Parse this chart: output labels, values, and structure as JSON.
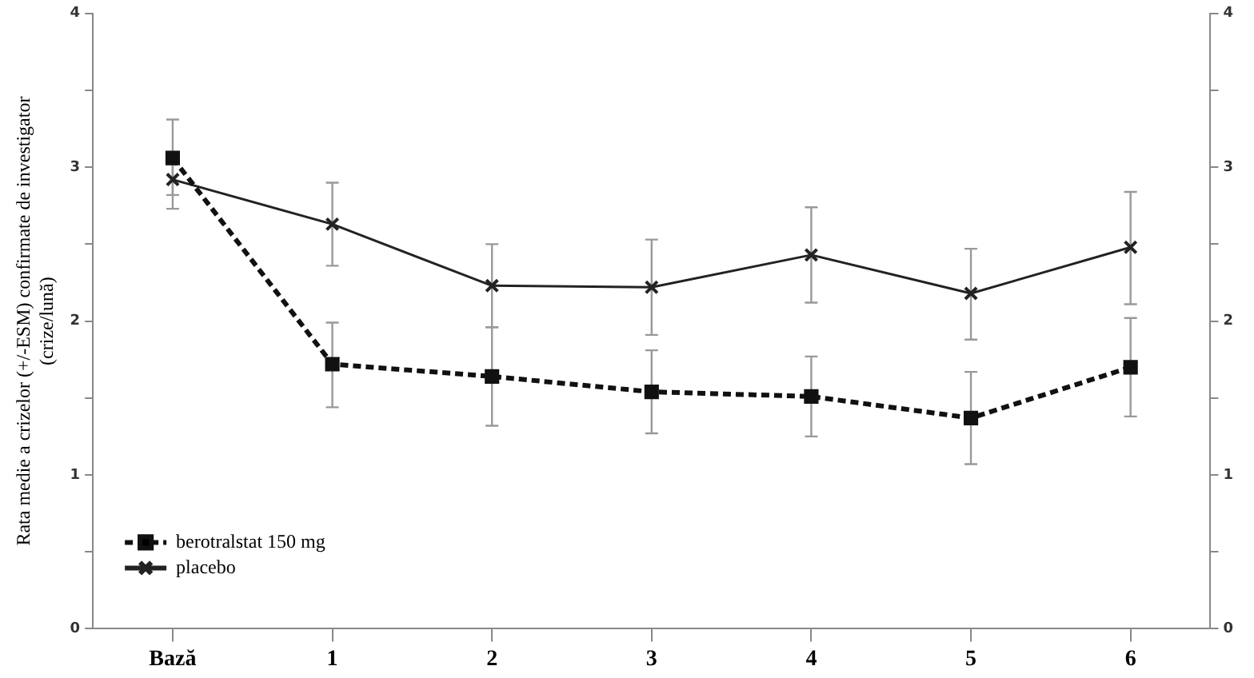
{
  "chart_data": {
    "type": "line",
    "ylabel": "Rata medie a crizelor (+/-ESM) confirmate de investigator\n(crize/lună)",
    "categories": [
      "Bază",
      "1",
      "2",
      "3",
      "4",
      "5",
      "6"
    ],
    "series": [
      {
        "name": "berotralstat 150 mg",
        "color": "#111111",
        "marker": "square",
        "line_style": "dashed",
        "values": [
          3.06,
          1.72,
          1.64,
          1.54,
          1.51,
          1.37,
          1.7
        ],
        "errors": [
          [
            2.82,
            3.31
          ],
          [
            1.44,
            1.99
          ],
          [
            1.32,
            1.96
          ],
          [
            1.27,
            1.81
          ],
          [
            1.25,
            1.77
          ],
          [
            1.07,
            1.67
          ],
          [
            1.38,
            2.02
          ]
        ]
      },
      {
        "name": "placebo",
        "color": "#222222",
        "marker": "cross",
        "line_style": "solid",
        "values": [
          2.92,
          2.63,
          2.23,
          2.22,
          2.43,
          2.18,
          2.48
        ],
        "errors": [
          [
            2.73,
            3.08
          ],
          [
            2.36,
            2.9
          ],
          [
            1.96,
            2.5
          ],
          [
            1.91,
            2.53
          ],
          [
            2.12,
            2.74
          ],
          [
            1.88,
            2.47
          ],
          [
            2.11,
            2.84
          ]
        ]
      }
    ],
    "ylim": [
      0,
      4
    ],
    "yticks": [
      0,
      {
        "value": 0.5,
        "label": null
      },
      1,
      {
        "value": 1.5,
        "label": null
      },
      2,
      {
        "value": 2.5,
        "label": null
      },
      3,
      {
        "value": 3.5,
        "label": null
      },
      4
    ],
    "y2lim": [
      0,
      4
    ],
    "y2ticks": [
      0,
      {
        "value": 0.5,
        "label": null
      },
      1,
      {
        "value": 1.5,
        "label": null
      },
      2,
      {
        "value": 2.5,
        "label": null
      },
      3,
      {
        "value": 3.5,
        "label": null
      },
      4
    ],
    "grid": false,
    "legend": "bottom left"
  }
}
